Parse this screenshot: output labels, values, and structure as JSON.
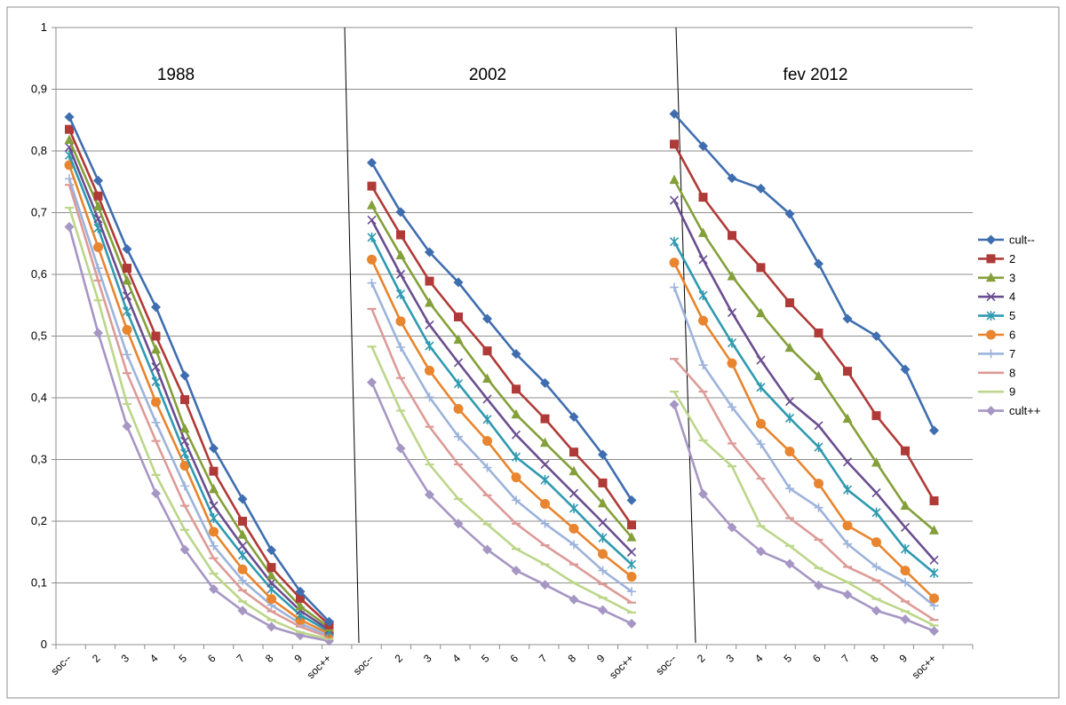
{
  "chart_data": {
    "type": "line",
    "categories": [
      "soc--",
      "2",
      "3",
      "4",
      "5",
      "6",
      "7",
      "8",
      "9",
      "soc++"
    ],
    "ylim": [
      0,
      1
    ],
    "yticks": [
      "0",
      "0,1",
      "0,2",
      "0,3",
      "0,4",
      "0,5",
      "0,6",
      "0,7",
      "0,8",
      "0,9",
      "1"
    ],
    "grid": true,
    "legend_position": "right",
    "legend": [
      "cult--",
      "2",
      "3",
      "4",
      "5",
      "6",
      "7",
      "8",
      "9",
      "cult++"
    ],
    "series_styles": [
      {
        "color": "#3f6eb0",
        "marker": "diamond"
      },
      {
        "color": "#b03a37",
        "marker": "square"
      },
      {
        "color": "#84a03a",
        "marker": "triangle"
      },
      {
        "color": "#6a4d8f",
        "marker": "x"
      },
      {
        "color": "#2f9ab0",
        "marker": "star"
      },
      {
        "color": "#e8852e",
        "marker": "circle"
      },
      {
        "color": "#9db3db",
        "marker": "plus"
      },
      {
        "color": "#dd9b97",
        "marker": "dash"
      },
      {
        "color": "#bcd68a",
        "marker": "dash"
      },
      {
        "color": "#a696c4",
        "marker": "diamond"
      }
    ],
    "panels": [
      {
        "title": "1988",
        "series": [
          {
            "name": "cult--",
            "values": [
              0.855,
              0.752,
              0.641,
              0.547,
              0.436,
              0.318,
              0.236,
              0.153,
              0.086,
              0.037
            ]
          },
          {
            "name": "2",
            "values": [
              0.835,
              0.727,
              0.61,
              0.5,
              0.397,
              0.281,
              0.2,
              0.125,
              0.075,
              0.032
            ]
          },
          {
            "name": "3",
            "values": [
              0.818,
              0.71,
              0.59,
              0.478,
              0.35,
              0.252,
              0.178,
              0.112,
              0.062,
              0.028
            ]
          },
          {
            "name": "4",
            "values": [
              0.806,
              0.69,
              0.565,
              0.45,
              0.33,
              0.225,
              0.16,
              0.1,
              0.055,
              0.024
            ]
          },
          {
            "name": "5",
            "values": [
              0.793,
              0.675,
              0.54,
              0.426,
              0.31,
              0.205,
              0.145,
              0.09,
              0.048,
              0.021
            ]
          },
          {
            "name": "6",
            "values": [
              0.777,
              0.644,
              0.51,
              0.393,
              0.29,
              0.183,
              0.122,
              0.074,
              0.04,
              0.018
            ]
          },
          {
            "name": "7",
            "values": [
              0.755,
              0.61,
              0.47,
              0.36,
              0.257,
              0.16,
              0.104,
              0.064,
              0.034,
              0.015
            ]
          },
          {
            "name": "8",
            "values": [
              0.745,
              0.59,
              0.44,
              0.33,
              0.225,
              0.14,
              0.088,
              0.054,
              0.029,
              0.012
            ]
          },
          {
            "name": "9",
            "values": [
              0.708,
              0.558,
              0.39,
              0.275,
              0.186,
              0.115,
              0.07,
              0.04,
              0.02,
              0.009
            ]
          },
          {
            "name": "cult++",
            "values": [
              0.677,
              0.505,
              0.354,
              0.245,
              0.154,
              0.09,
              0.055,
              0.029,
              0.015,
              0.006
            ]
          }
        ]
      },
      {
        "title": "2002",
        "series": [
          {
            "name": "cult--",
            "values": [
              0.781,
              0.701,
              0.636,
              0.587,
              0.528,
              0.471,
              0.424,
              0.369,
              0.308,
              0.234
            ]
          },
          {
            "name": "2",
            "values": [
              0.743,
              0.664,
              0.589,
              0.531,
              0.476,
              0.414,
              0.366,
              0.312,
              0.262,
              0.194
            ]
          },
          {
            "name": "3",
            "values": [
              0.712,
              0.631,
              0.554,
              0.494,
              0.431,
              0.373,
              0.327,
              0.281,
              0.229,
              0.174
            ]
          },
          {
            "name": "4",
            "values": [
              0.688,
              0.6,
              0.518,
              0.457,
              0.398,
              0.34,
              0.292,
              0.245,
              0.198,
              0.15
            ]
          },
          {
            "name": "5",
            "values": [
              0.66,
              0.568,
              0.484,
              0.423,
              0.365,
              0.304,
              0.267,
              0.221,
              0.173,
              0.13
            ]
          },
          {
            "name": "6",
            "values": [
              0.624,
              0.524,
              0.444,
              0.382,
              0.33,
              0.271,
              0.228,
              0.188,
              0.147,
              0.11
            ]
          },
          {
            "name": "7",
            "values": [
              0.586,
              0.482,
              0.401,
              0.337,
              0.287,
              0.234,
              0.196,
              0.162,
              0.12,
              0.086
            ]
          },
          {
            "name": "8",
            "values": [
              0.544,
              0.432,
              0.353,
              0.292,
              0.242,
              0.196,
              0.161,
              0.13,
              0.098,
              0.068
            ]
          },
          {
            "name": "9",
            "values": [
              0.483,
              0.379,
              0.292,
              0.236,
              0.195,
              0.155,
              0.13,
              0.1,
              0.076,
              0.052
            ]
          },
          {
            "name": "cult++",
            "values": [
              0.425,
              0.318,
              0.243,
              0.196,
              0.154,
              0.12,
              0.097,
              0.073,
              0.056,
              0.034
            ]
          }
        ]
      },
      {
        "title": "fev 2012",
        "series": [
          {
            "name": "cult--",
            "values": [
              0.86,
              0.808,
              0.756,
              0.739,
              0.698,
              0.617,
              0.528,
              0.5,
              0.446,
              0.347
            ]
          },
          {
            "name": "2",
            "values": [
              0.811,
              0.725,
              0.663,
              0.611,
              0.554,
              0.505,
              0.443,
              0.371,
              0.314,
              0.233
            ]
          },
          {
            "name": "3",
            "values": [
              0.753,
              0.667,
              0.597,
              0.537,
              0.481,
              0.435,
              0.366,
              0.295,
              0.225,
              0.185
            ]
          },
          {
            "name": "4",
            "values": [
              0.72,
              0.624,
              0.538,
              0.461,
              0.394,
              0.355,
              0.296,
              0.246,
              0.19,
              0.137
            ]
          },
          {
            "name": "5",
            "values": [
              0.653,
              0.566,
              0.489,
              0.417,
              0.367,
              0.32,
              0.251,
              0.214,
              0.155,
              0.116
            ]
          },
          {
            "name": "6",
            "values": [
              0.619,
              0.525,
              0.456,
              0.358,
              0.313,
              0.261,
              0.193,
              0.166,
              0.12,
              0.075
            ]
          },
          {
            "name": "7",
            "values": [
              0.579,
              0.453,
              0.385,
              0.325,
              0.253,
              0.222,
              0.163,
              0.126,
              0.101,
              0.063
            ]
          },
          {
            "name": "8",
            "values": [
              0.463,
              0.41,
              0.326,
              0.269,
              0.205,
              0.17,
              0.126,
              0.104,
              0.07,
              0.04
            ]
          },
          {
            "name": "9",
            "values": [
              0.41,
              0.331,
              0.289,
              0.192,
              0.16,
              0.124,
              0.101,
              0.074,
              0.054,
              0.031
            ]
          },
          {
            "name": "cult++",
            "values": [
              0.389,
              0.244,
              0.19,
              0.151,
              0.131,
              0.096,
              0.081,
              0.055,
              0.041,
              0.022
            ]
          }
        ]
      }
    ]
  }
}
